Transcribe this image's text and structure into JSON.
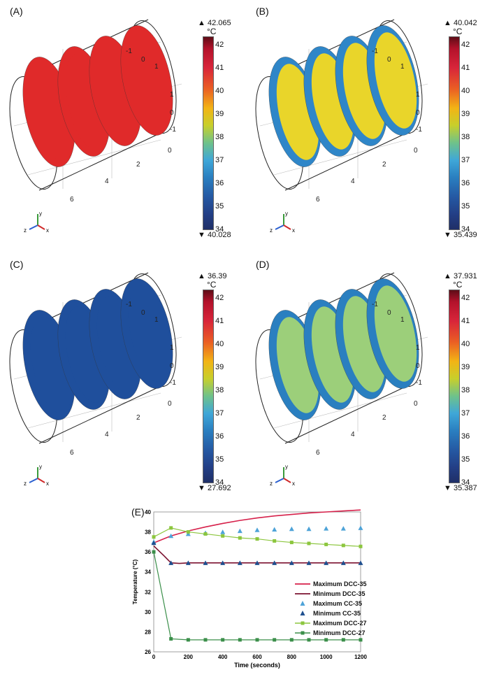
{
  "panels": [
    {
      "id": "A",
      "letter": "(A)",
      "max": "42.065",
      "min": "40.028",
      "unit": "°C",
      "state": "hot"
    },
    {
      "id": "B",
      "letter": "(B)",
      "max": "40.042",
      "min": "35.439",
      "unit": "°C",
      "state": "mixed"
    },
    {
      "id": "C",
      "letter": "(C)",
      "max": "36.39",
      "min": "27.692",
      "unit": "°C",
      "state": "cold"
    },
    {
      "id": "D",
      "letter": "(D)",
      "max": "37.931",
      "min": "35.387",
      "unit": "°C",
      "state": "cool"
    }
  ],
  "colorbar_ticks": [
    "42",
    "41",
    "40",
    "39",
    "38",
    "37",
    "36",
    "35",
    "34"
  ],
  "axis_labels": {
    "y_top": "-1",
    "y_zero": "0",
    "y_one": "1",
    "x_one": "1",
    "x_zero": "0",
    "x_neg": "-1",
    "x_zero2": "0",
    "z_two": "2",
    "z_four": "4",
    "z_six": "6"
  },
  "gizmo": {
    "y": "y",
    "z": "z",
    "x": "x"
  },
  "state_colors": {
    "hot": "#e02a2a",
    "mixed": "#c9d34a",
    "cold": "#1f4f9c",
    "cool": "#4a9ee0"
  },
  "chart_data": {
    "type": "line",
    "letter": "(E)",
    "xlabel": "Time (seconds)",
    "ylabel": "Temperature (°C)",
    "xlim": [
      0,
      1200
    ],
    "ylim": [
      26,
      40
    ],
    "xticks": [
      0,
      200,
      400,
      600,
      800,
      1000,
      1200
    ],
    "yticks": [
      26,
      28,
      30,
      32,
      34,
      36,
      38,
      40
    ],
    "series": [
      {
        "name": "Maximum DCC-35",
        "color": "#d6204a",
        "marker": "none",
        "x": [
          0,
          100,
          200,
          300,
          400,
          500,
          600,
          700,
          800,
          900,
          1000,
          1100,
          1200
        ],
        "y": [
          36.9,
          37.6,
          38.1,
          38.5,
          38.85,
          39.15,
          39.4,
          39.6,
          39.75,
          39.9,
          40.0,
          40.1,
          40.2
        ]
      },
      {
        "name": "Minimum DCC-35",
        "color": "#7b1230",
        "marker": "none",
        "x": [
          0,
          60,
          100,
          150,
          200,
          300,
          400,
          600,
          800,
          1000,
          1200
        ],
        "y": [
          36.6,
          35.6,
          34.9,
          34.85,
          34.9,
          34.9,
          34.9,
          34.9,
          34.9,
          34.9,
          34.9
        ]
      },
      {
        "name": "Maximum CC-35",
        "color": "#4ea3d8",
        "marker": "triangle",
        "x": [
          0,
          100,
          200,
          300,
          400,
          500,
          600,
          700,
          800,
          900,
          1000,
          1100,
          1200
        ],
        "y": [
          37.0,
          37.6,
          37.8,
          37.9,
          38.0,
          38.1,
          38.2,
          38.25,
          38.3,
          38.3,
          38.35,
          38.35,
          38.4
        ]
      },
      {
        "name": "Minimum CC-35",
        "color": "#1f4f8f",
        "marker": "triangle",
        "x": [
          0,
          100,
          200,
          300,
          400,
          500,
          600,
          700,
          800,
          900,
          1000,
          1100,
          1200
        ],
        "y": [
          36.9,
          34.9,
          34.9,
          34.9,
          34.9,
          34.9,
          34.9,
          34.9,
          34.9,
          34.9,
          34.9,
          34.9,
          34.9
        ]
      },
      {
        "name": "Maximum DCC-27",
        "color": "#8cc63e",
        "marker": "square",
        "x": [
          0,
          100,
          200,
          300,
          400,
          500,
          600,
          700,
          800,
          900,
          1000,
          1100,
          1200
        ],
        "y": [
          37.5,
          38.4,
          38.0,
          37.8,
          37.6,
          37.4,
          37.3,
          37.1,
          36.95,
          36.85,
          36.75,
          36.65,
          36.55
        ]
      },
      {
        "name": "Minimum DCC-27",
        "color": "#3b8f4a",
        "marker": "square",
        "x": [
          0,
          100,
          200,
          300,
          400,
          500,
          600,
          700,
          800,
          900,
          1000,
          1100,
          1200
        ],
        "y": [
          36.0,
          27.3,
          27.2,
          27.2,
          27.2,
          27.2,
          27.2,
          27.2,
          27.2,
          27.2,
          27.2,
          27.2,
          27.2
        ]
      }
    ]
  }
}
